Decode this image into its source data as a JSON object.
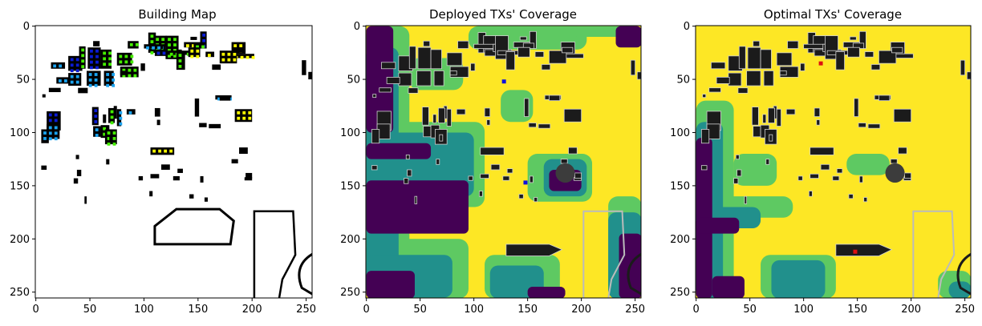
{
  "figure": {
    "background": "#ffffff"
  },
  "chart_data": [
    {
      "type": "heatmap",
      "title": "Building Map",
      "xlabel": "",
      "ylabel": "",
      "xlim": [
        0,
        256
      ],
      "ylim": [
        256,
        0
      ],
      "x_ticks": [
        0,
        50,
        100,
        150,
        200,
        250
      ],
      "y_ticks": [
        0,
        50,
        100,
        150,
        200,
        250
      ],
      "background_color": "#ffffff",
      "colors": {
        "building": "#000000",
        "green": "#44ee00",
        "yellow": "#ffff00",
        "blue": "#0a1bd6",
        "cyan": "#1aa3f0"
      },
      "buildings": [
        [
          10,
          80,
          13,
          18,
          "blue"
        ],
        [
          10,
          92,
          12,
          14,
          "cyan"
        ],
        [
          5,
          97,
          7,
          13,
          "cyan"
        ],
        [
          6,
          64,
          3,
          3,
          "none"
        ],
        [
          14,
          34,
          13,
          6,
          "cyan"
        ],
        [
          30,
          28,
          13,
          14,
          "blue"
        ],
        [
          30,
          44,
          12,
          12,
          "cyan"
        ],
        [
          19,
          48,
          12,
          6,
          "cyan"
        ],
        [
          12,
          58,
          11,
          4,
          "none"
        ],
        [
          48,
          20,
          12,
          20,
          "blue"
        ],
        [
          47,
          42,
          13,
          14,
          "cyan"
        ],
        [
          60,
          22,
          10,
          18,
          "green"
        ],
        [
          63,
          42,
          9,
          14,
          "cyan"
        ],
        [
          52,
          76,
          6,
          17,
          "blue"
        ],
        [
          53,
          94,
          7,
          10,
          "cyan"
        ],
        [
          60,
          93,
          8,
          12,
          "green"
        ],
        [
          72,
          75,
          3,
          12,
          "green"
        ],
        [
          75,
          78,
          4,
          16,
          "cyan"
        ],
        [
          84,
          78,
          8,
          5,
          "cyan"
        ],
        [
          64,
          97,
          11,
          14,
          "green"
        ],
        [
          67,
          77,
          6,
          14,
          "green"
        ],
        [
          75,
          25,
          14,
          12,
          "green"
        ],
        [
          78,
          38,
          17,
          10,
          "green"
        ],
        [
          85,
          14,
          10,
          7,
          "green"
        ],
        [
          40,
          19,
          6,
          21,
          "green"
        ],
        [
          104,
          6,
          7,
          19,
          "green"
        ],
        [
          109,
          9,
          12,
          16,
          "green"
        ],
        [
          100,
          17,
          22,
          4,
          "cyan"
        ],
        [
          110,
          22,
          25,
          6,
          "blue"
        ],
        [
          118,
          17,
          12,
          7,
          "cyan"
        ],
        [
          120,
          9,
          12,
          22,
          "green"
        ],
        [
          122,
          23,
          25,
          4,
          "green"
        ],
        [
          130,
          24,
          8,
          17,
          "green"
        ],
        [
          152,
          5,
          6,
          16,
          "blue"
        ],
        [
          157,
          24,
          8,
          5,
          "yellow"
        ],
        [
          143,
          10,
          6,
          3,
          "green"
        ],
        [
          137,
          15,
          15,
          5,
          "yellow"
        ],
        [
          182,
          26,
          20,
          4,
          "yellow"
        ],
        [
          181,
          15,
          13,
          11,
          "yellow"
        ],
        [
          166,
          65,
          15,
          4,
          "cyan"
        ],
        [
          146,
          16,
          10,
          5,
          "green"
        ],
        [
          141,
          20,
          11,
          9,
          "yellow"
        ],
        [
          170,
          23,
          16,
          12,
          "yellow"
        ],
        [
          184,
          78,
          16,
          12,
          "yellow"
        ],
        [
          170,
          65,
          10,
          5,
          "none"
        ],
        [
          182,
          20,
          10,
          5,
          "none"
        ],
        [
          147,
          68,
          4,
          17,
          "none"
        ],
        [
          151,
          91,
          7,
          4,
          "none"
        ],
        [
          160,
          92,
          11,
          4,
          "none"
        ],
        [
          246,
          32,
          4,
          14,
          "none"
        ],
        [
          252,
          43,
          4,
          7,
          "none"
        ],
        [
          193,
          142,
          7,
          3,
          "none"
        ],
        [
          194,
          138,
          6,
          5,
          "none"
        ],
        [
          181,
          125,
          6,
          4,
          "none"
        ],
        [
          188,
          114,
          8,
          6,
          "none"
        ],
        [
          163,
          36,
          8,
          5,
          "none"
        ],
        [
          106,
          114,
          22,
          7,
          "yellow"
        ],
        [
          142,
          158,
          4,
          4,
          "none"
        ],
        [
          131,
          134,
          5,
          4,
          "none"
        ],
        [
          78,
          42,
          6,
          4,
          "none"
        ],
        [
          110,
          77,
          5,
          8,
          "none"
        ],
        [
          112,
          88,
          3,
          5,
          "none"
        ],
        [
          53,
          14,
          6,
          5,
          "none"
        ],
        [
          39,
          58,
          9,
          5,
          "none"
        ],
        [
          97,
          35,
          4,
          7,
          "none"
        ],
        [
          62,
          83,
          3,
          8,
          "none"
        ],
        [
          68,
          102,
          3,
          6,
          "none"
        ],
        [
          127,
          141,
          6,
          4,
          "none"
        ],
        [
          116,
          130,
          8,
          5,
          "none"
        ],
        [
          106,
          139,
          8,
          4,
          "none"
        ],
        [
          105,
          155,
          3,
          5,
          "none"
        ],
        [
          65,
          125,
          3,
          5,
          "none"
        ],
        [
          38,
          135,
          4,
          6,
          "none"
        ],
        [
          5,
          131,
          5,
          4,
          "none"
        ],
        [
          95,
          141,
          4,
          4,
          "none"
        ],
        [
          152,
          141,
          3,
          6,
          "none"
        ],
        [
          156,
          161,
          3,
          4,
          "none"
        ],
        [
          35,
          143,
          4,
          5,
          "none"
        ],
        [
          37,
          121,
          3,
          4,
          "none"
        ],
        [
          45,
          160,
          2,
          7,
          "none"
        ]
      ]
    },
    {
      "type": "heatmap",
      "title": "Deployed TXs' Coverage",
      "xlabel": "",
      "ylabel": "",
      "xlim": [
        0,
        256
      ],
      "ylim": [
        256,
        0
      ],
      "x_ticks": [
        0,
        50,
        100,
        150,
        200,
        250
      ],
      "y_ticks": [
        0,
        50,
        100,
        150,
        200,
        250
      ],
      "colors": {
        "very_low": "#440154",
        "low": "#21908c",
        "mid": "#5ec962",
        "high": "#fde725",
        "building": "#1b1b1b",
        "outline": "#d0d0d0"
      },
      "transmitters": [
        [
          128,
          52
        ],
        [
          148,
          147
        ]
      ],
      "tx_color": "#1010dd"
    },
    {
      "type": "heatmap",
      "title": "Optimal TXs' Coverage",
      "xlabel": "",
      "ylabel": "",
      "xlim": [
        0,
        256
      ],
      "ylim": [
        256,
        0
      ],
      "x_ticks": [
        0,
        50,
        100,
        150,
        200,
        250
      ],
      "y_ticks": [
        0,
        50,
        100,
        150,
        200,
        250
      ],
      "colors": {
        "very_low": "#440154",
        "low": "#21908c",
        "mid": "#5ec962",
        "high": "#fde725",
        "building": "#1b1b1b",
        "outline": "#d0d0d0"
      },
      "transmitters": [
        [
          116,
          35
        ],
        [
          148,
          212
        ]
      ],
      "tx_color": "#dd1010"
    }
  ]
}
